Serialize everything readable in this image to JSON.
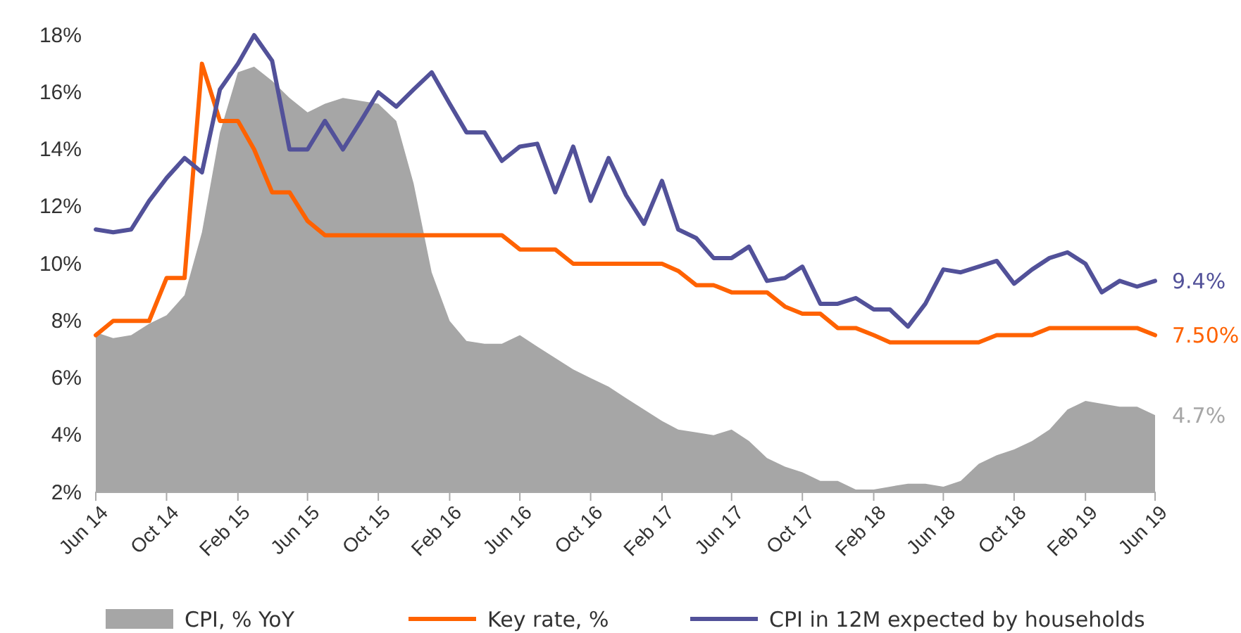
{
  "chart_data": {
    "type": "line",
    "x": [
      "2014-06",
      "2014-07",
      "2014-08",
      "2014-09",
      "2014-10",
      "2014-11",
      "2014-12",
      "2015-01",
      "2015-02",
      "2015-03",
      "2015-04",
      "2015-05",
      "2015-06",
      "2015-07",
      "2015-08",
      "2015-09",
      "2015-10",
      "2015-11",
      "2015-12",
      "2016-01",
      "2016-02",
      "2016-03",
      "2016-04",
      "2016-05",
      "2016-06",
      "2016-07",
      "2016-08",
      "2016-09",
      "2016-10",
      "2016-11",
      "2016-12",
      "2017-01",
      "2017-02",
      "2017-03",
      "2017-04",
      "2017-05",
      "2017-06",
      "2017-07",
      "2017-08",
      "2017-09",
      "2017-10",
      "2017-11",
      "2017-12",
      "2018-01",
      "2018-02",
      "2018-03",
      "2018-04",
      "2018-05",
      "2018-06",
      "2018-07",
      "2018-08",
      "2018-09",
      "2018-10",
      "2018-11",
      "2018-12",
      "2019-01",
      "2019-02",
      "2019-03",
      "2019-04",
      "2019-05",
      "2019-06"
    ],
    "series": [
      {
        "name": "CPI, % YoY",
        "type": "area",
        "color": "#a6a6a6",
        "values": [
          7.6,
          7.4,
          7.5,
          7.9,
          8.2,
          8.9,
          11.1,
          14.6,
          16.7,
          16.9,
          16.4,
          15.8,
          15.3,
          15.6,
          15.8,
          15.7,
          15.6,
          15.0,
          12.8,
          9.7,
          8.0,
          7.3,
          7.2,
          7.2,
          7.5,
          7.1,
          6.7,
          6.3,
          6.0,
          5.7,
          5.3,
          4.9,
          4.5,
          4.2,
          4.1,
          4.0,
          4.2,
          3.8,
          3.2,
          2.9,
          2.7,
          2.4,
          2.4,
          2.1,
          2.1,
          2.2,
          2.3,
          2.3,
          2.2,
          2.4,
          3.0,
          3.3,
          3.5,
          3.8,
          4.2,
          4.9,
          5.2,
          5.1,
          5.0,
          5.0,
          4.7
        ]
      },
      {
        "name": "Key rate, %",
        "color": "#ff6200",
        "values": [
          7.5,
          8,
          8,
          8,
          9.5,
          9.5,
          17,
          15,
          15,
          14,
          12.5,
          12.5,
          11.5,
          11,
          11,
          11,
          11,
          11,
          11,
          11,
          11,
          11,
          11,
          11,
          10.5,
          10.5,
          10.5,
          10,
          10,
          10,
          10,
          10,
          10,
          9.75,
          9.25,
          9.25,
          9,
          9,
          9,
          8.5,
          8.25,
          8.25,
          7.75,
          7.75,
          7.5,
          7.25,
          7.25,
          7.25,
          7.25,
          7.25,
          7.25,
          7.5,
          7.5,
          7.5,
          7.75,
          7.75,
          7.75,
          7.75,
          7.75,
          7.75,
          7.5
        ]
      },
      {
        "name": "CPI in 12M expected by households",
        "color": "#525199",
        "values": [
          11.2,
          11.1,
          11.2,
          12.2,
          13.0,
          13.7,
          13.2,
          16.1,
          17.0,
          18.0,
          17.1,
          14.0,
          14.0,
          15.0,
          14.0,
          15.0,
          16.0,
          15.5,
          16.1,
          16.7,
          15.6,
          14.6,
          14.6,
          13.6,
          14.1,
          14.2,
          12.5,
          14.1,
          12.2,
          13.7,
          12.4,
          11.4,
          12.9,
          11.2,
          10.9,
          10.2,
          10.2,
          10.6,
          9.4,
          9.5,
          9.9,
          8.6,
          8.6,
          8.8,
          8.4,
          8.4,
          7.8,
          8.6,
          9.8,
          9.7,
          9.9,
          10.1,
          9.3,
          9.8,
          10.2,
          10.4,
          10.0,
          9.0,
          9.4,
          9.2,
          9.4
        ]
      }
    ],
    "xlim": [
      "2014-06",
      "2019-06"
    ],
    "xticks": [
      {
        "value": "2014-06",
        "label": "Jun 14"
      },
      {
        "value": "2014-10",
        "label": "Oct 14"
      },
      {
        "value": "2015-02",
        "label": "Feb 15"
      },
      {
        "value": "2015-06",
        "label": "Jun 15"
      },
      {
        "value": "2015-10",
        "label": "Oct 15"
      },
      {
        "value": "2016-02",
        "label": "Feb 16"
      },
      {
        "value": "2016-06",
        "label": "Jun 16"
      },
      {
        "value": "2016-10",
        "label": "Oct 16"
      },
      {
        "value": "2017-02",
        "label": "Feb 17"
      },
      {
        "value": "2017-06",
        "label": "Jun 17"
      },
      {
        "value": "2017-10",
        "label": "Oct 17"
      },
      {
        "value": "2018-02",
        "label": "Feb 18"
      },
      {
        "value": "2018-06",
        "label": "Jun 18"
      },
      {
        "value": "2018-10",
        "label": "Oct 18"
      },
      {
        "value": "2019-02",
        "label": "Feb 19"
      },
      {
        "value": "2019-06",
        "label": "Jun 19"
      }
    ],
    "ylim": [
      2,
      18
    ],
    "yticks": [
      {
        "value": 2,
        "label": "2%"
      },
      {
        "value": 4,
        "label": "4%"
      },
      {
        "value": 6,
        "label": "6%"
      },
      {
        "value": 8,
        "label": "8%"
      },
      {
        "value": 10,
        "label": "10%"
      },
      {
        "value": 12,
        "label": "12%"
      },
      {
        "value": 14,
        "label": "14%"
      },
      {
        "value": 16,
        "label": "16%"
      },
      {
        "value": 18,
        "label": "18%"
      }
    ],
    "annotations": [
      {
        "text": "4.7%",
        "x": "2019-06",
        "y": 4.7
      },
      {
        "text": "7.50%",
        "x": "2019-06",
        "y": 7.5
      },
      {
        "text": "9.4%",
        "x": "2019-06",
        "y": 9.4
      }
    ],
    "grid": false,
    "legend": "bottom",
    "marker": "none",
    "line_style": "solid"
  }
}
